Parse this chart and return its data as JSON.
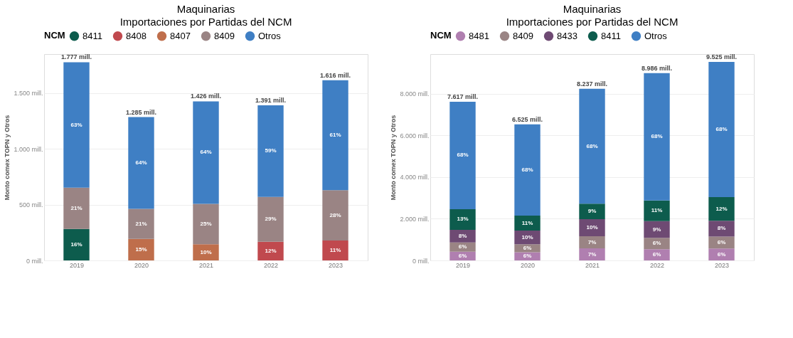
{
  "chart_data": [
    {
      "type": "bar",
      "title": "Maquinarias",
      "subtitle": "Importaciones por Partidas del NCM",
      "ylabel": "Monto comex TOPN y Otros",
      "legend_title": "NCM",
      "legend": "top",
      "grid": "y",
      "stacked": true,
      "categories": [
        "2019",
        "2020",
        "2021",
        "2022",
        "2023"
      ],
      "ylim": [
        0,
        1850
      ],
      "yticks": [
        {
          "value": 0,
          "label": "0 mill."
        },
        {
          "value": 500,
          "label": "500 mill."
        },
        {
          "value": 1000,
          "label": "1.000 mill."
        },
        {
          "value": 1500,
          "label": "1.500 mill."
        }
      ],
      "series": [
        {
          "name": "8411",
          "color": "#0d5c4d",
          "values": [
            282,
            null,
            null,
            null,
            null
          ]
        },
        {
          "name": "8408",
          "color": "#c0494e",
          "values": [
            null,
            null,
            null,
            167,
            178
          ]
        },
        {
          "name": "8407",
          "color": "#bf6e4b",
          "values": [
            null,
            193,
            145,
            null,
            null
          ]
        },
        {
          "name": "8409",
          "color": "#9a8484",
          "values": [
            371,
            270,
            362,
            403,
            452
          ]
        },
        {
          "name": "Otros",
          "color": "#3f7fc4",
          "values": [
            1124,
            822,
            919,
            821,
            986
          ]
        }
      ],
      "totals": [
        "1.777 mill.",
        "1.285 mill.",
        "1.426 mill.",
        "1.391 mill.",
        "1.616 mill."
      ],
      "annotations": [
        "16%",
        "21%",
        "63%",
        "15%",
        "21%",
        "64%",
        "10%",
        "25%",
        "64%",
        "12%",
        "29%",
        "59%",
        "11%",
        "28%",
        "61%"
      ]
    },
    {
      "type": "bar",
      "title": "Maquinarias",
      "subtitle": "Importaciones por Partidas del NCM",
      "ylabel": "Monto comex TOPN y Otros",
      "legend_title": "NCM",
      "legend": "top",
      "grid": "y",
      "stacked": true,
      "categories": [
        "2019",
        "2020",
        "2021",
        "2022",
        "2023"
      ],
      "ylim": [
        0,
        9900
      ],
      "yticks": [
        {
          "value": 0,
          "label": "0 mill."
        },
        {
          "value": 2000,
          "label": "2.000 mill."
        },
        {
          "value": 4000,
          "label": "4.000 mill."
        },
        {
          "value": 6000,
          "label": "6.000 mill."
        },
        {
          "value": 8000,
          "label": "8.000 mill."
        }
      ],
      "series": [
        {
          "name": "8481",
          "color": "#b07fb0",
          "values": [
            420,
            390,
            580,
            540,
            570
          ]
        },
        {
          "name": "8409",
          "color": "#9a8484",
          "values": [
            440,
            390,
            580,
            540,
            570
          ]
        },
        {
          "name": "8433",
          "color": "#6e4a73",
          "values": [
            610,
            650,
            820,
            810,
            760
          ]
        },
        {
          "name": "8411",
          "color": "#0d5c4d",
          "values": [
            990,
            720,
            740,
            990,
            1140
          ]
        },
        {
          "name": "Otros",
          "color": "#3f7fc4",
          "values": [
            5157,
            4375,
            5517,
            6106,
            6485
          ]
        }
      ],
      "totals": [
        "7.617 mill.",
        "6.525 mill.",
        "8.237 mill.",
        "8.986 mill.",
        "9.525 mill."
      ],
      "annotations": [
        "6%",
        "6%",
        "8%",
        "13%",
        "68%",
        "6%",
        "6%",
        "10%",
        "11%",
        "68%",
        "7%",
        "7%",
        "10%",
        "9%",
        "68%",
        "6%",
        "6%",
        "9%",
        "11%",
        "68%",
        "6%",
        "6%",
        "8%",
        "12%",
        "68%"
      ]
    }
  ]
}
